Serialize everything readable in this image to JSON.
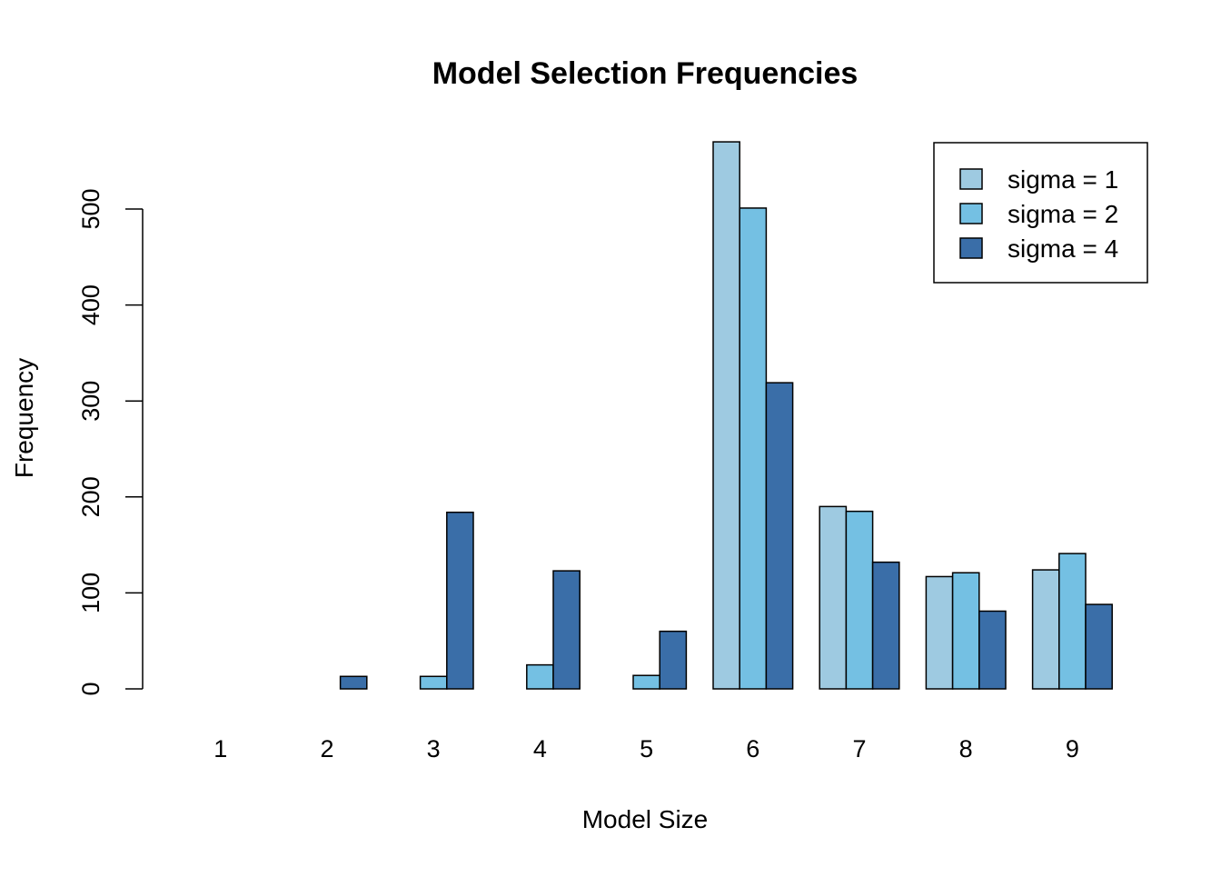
{
  "chart_data": {
    "type": "bar",
    "title": "Model Selection Frequencies",
    "xlabel": "Model Size",
    "ylabel": "Frequency",
    "categories": [
      "1",
      "2",
      "3",
      "4",
      "5",
      "6",
      "7",
      "8",
      "9"
    ],
    "series": [
      {
        "name": "sigma = 1",
        "color": "#9ECAE1",
        "values": [
          0,
          0,
          0,
          0,
          0,
          570,
          190,
          117,
          124
        ]
      },
      {
        "name": "sigma = 2",
        "color": "#74C0E3",
        "values": [
          0,
          0,
          13,
          25,
          14,
          501,
          185,
          121,
          141
        ]
      },
      {
        "name": "sigma = 4",
        "color": "#3A6EA8",
        "values": [
          0,
          13,
          184,
          123,
          60,
          319,
          132,
          81,
          88
        ]
      }
    ],
    "yticks": [
      0,
      100,
      200,
      300,
      400,
      500
    ],
    "ylim": [
      0,
      570
    ],
    "grid": false,
    "legend_position": "top-right",
    "bar_style": "grouped"
  }
}
